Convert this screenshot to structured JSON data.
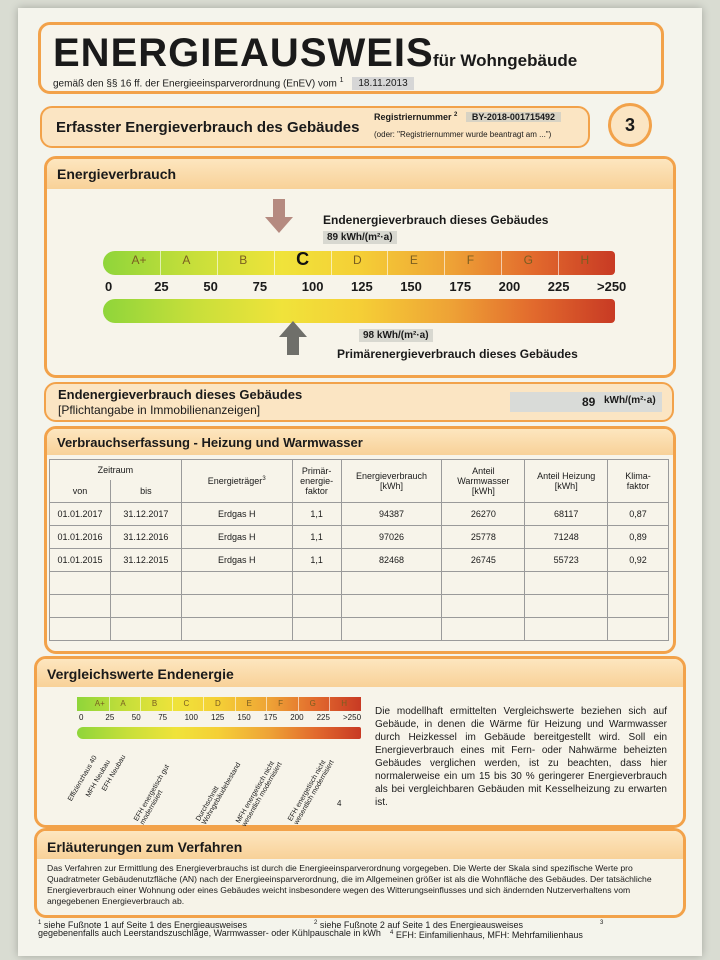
{
  "header": {
    "title": "ENERGIEAUSWEIS",
    "subtitle": "für Wohngebäude",
    "regulation": "gemäß den §§ 16 ff. der Energieeinsparverordnung (EnEV) vom",
    "regulation_sup": "1",
    "date": "18.11.2013"
  },
  "section_bar": {
    "title": "Erfasster Energieverbrauch des Gebäudes",
    "reg_label": "Registriernummer",
    "reg_sup": "2",
    "reg_number": "BY-2018-001715492",
    "reg_note": "(oder: \"Registriernummer wurde beantragt am ...\")",
    "page_number": "3"
  },
  "energy": {
    "heading": "Energieverbrauch",
    "end_label": "Endenergieverbrauch dieses Gebäudes",
    "end_value": "89 kWh/(m²·a)",
    "primary_label": "Primärenergieverbrauch dieses Gebäudes",
    "primary_value": "98 kWh/(m²·a)",
    "end_kwh": 89,
    "primary_kwh": 98,
    "current_class": "C",
    "classes": [
      "A+",
      "A",
      "B",
      "C",
      "D",
      "E",
      "F",
      "G",
      "H"
    ],
    "scale": [
      "0",
      "25",
      "50",
      "75",
      "100",
      "125",
      "150",
      "175",
      "200",
      "225",
      ">250"
    ]
  },
  "listing": {
    "label": "Endenergieverbrauch dieses Gebäudes",
    "note": "[Pflichtangabe in Immobilienanzeigen]",
    "value": "89",
    "unit": "kWh/(m²·a)"
  },
  "consumption": {
    "heading": "Verbrauchserfassung - Heizung und Warmwasser",
    "col_zeitraum": "Zeitraum",
    "col_von": "von",
    "col_bis": "bis",
    "col_traeger": "Energieträger",
    "col_traeger_sup": "3",
    "col_faktor": "Primär-\nenergie-\nfaktor",
    "col_verbrauch": "Energieverbrauch\n[kWh]",
    "col_ww": "Anteil\nWarmwasser\n[kWh]",
    "col_heiz": "Anteil Heizung\n[kWh]",
    "col_klima": "Klima-\nfaktor",
    "rows": [
      {
        "von": "01.01.2017",
        "bis": "31.12.2017",
        "traeger": "Erdgas H",
        "faktor": "1,1",
        "verbrauch": "94387",
        "ww": "26270",
        "heiz": "68117",
        "klima": "0,87"
      },
      {
        "von": "01.01.2016",
        "bis": "31.12.2016",
        "traeger": "Erdgas H",
        "faktor": "1,1",
        "verbrauch": "97026",
        "ww": "25778",
        "heiz": "71248",
        "klima": "0,89"
      },
      {
        "von": "01.01.2015",
        "bis": "31.12.2015",
        "traeger": "Erdgas H",
        "faktor": "1,1",
        "verbrauch": "82468",
        "ww": "26745",
        "heiz": "55723",
        "klima": "0,92"
      }
    ]
  },
  "comparison": {
    "heading": "Vergleichswerte Endenergie",
    "classes": [
      "A+",
      "A",
      "B",
      "C",
      "D",
      "E",
      "F",
      "G",
      "H"
    ],
    "scale": [
      "0",
      "25",
      "50",
      "75",
      "100",
      "125",
      "150",
      "175",
      "200",
      "225",
      ">250"
    ],
    "diag_labels": [
      "Effizienzhaus 40",
      "MFH Neubau",
      "EFH Neubau",
      "EFH energetisch gut modernisiert",
      "Durchschnitt Wohngebäudebestand",
      "MFH energetisch nicht wesentlich modernisiert",
      "EFH energetisch nicht wesentlich modernisiert"
    ],
    "footnote_mark": "4",
    "text": "Die modellhaft ermittelten Vergleichswerte beziehen sich auf Gebäude, in denen die Wärme für Heizung und Warmwasser durch Heizkessel im Gebäude bereitgestellt wird. Soll ein Energieverbrauch eines mit Fern- oder Nahwärme beheizten Gebäudes verglichen werden, ist zu beachten, dass hier normalerweise ein um 15 bis 30 % geringerer Energieverbrauch als bei vergleichbaren Gebäuden mit Kesselheizung zu erwarten ist."
  },
  "explanation": {
    "heading": "Erläuterungen zum Verfahren",
    "text": "Das Verfahren zur Ermittlung des Energieverbrauchs ist durch die Energieeinsparverordnung vorgegeben. Die Werte der Skala sind spezifische Werte pro Quadratmeter Gebäudenutzfläche (AN) nach der Energieeinsparverordnung, die im Allgemeinen größer ist als die Wohnfläche des Gebäudes. Der tatsächliche Energieverbrauch einer Wohnung oder eines Gebäudes weicht insbesondere wegen des Witterungseinflusses und sich ändernden Nutzerverhaltens vom angegebenen Energieverbrauch ab."
  },
  "footnotes": {
    "f1": "siehe Fußnote 1 auf Seite 1 des Energieausweises",
    "f2": "siehe Fußnote 2 auf Seite 1 des Energieausweises",
    "f3": "gegebenenfalls auch Leerstandszuschläge, Warmwasser- oder Kühlpauschale in kWh",
    "f4": "EFH: Einfamilienhaus, MFH: Mehrfamilienhaus",
    "m1": "1",
    "m2": "2",
    "m3": "3",
    "m4": "4"
  },
  "colors": {
    "accent": "#f2a24a",
    "class_green": "#8fd53a",
    "class_red": "#c83a24"
  }
}
